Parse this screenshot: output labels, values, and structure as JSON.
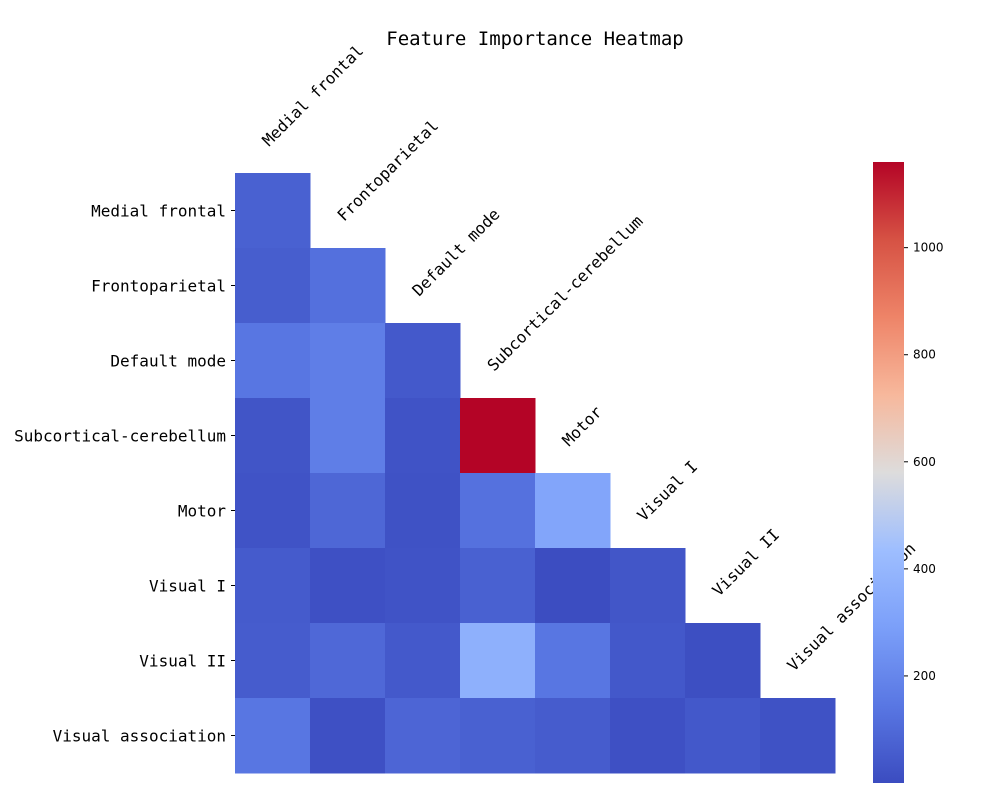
{
  "chart_data": {
    "type": "heatmap",
    "title": "Feature Importance Heatmap",
    "row_labels": [
      "Medial frontal",
      "Frontoparietal",
      "Default mode",
      "Subcortical-cerebellum",
      "Motor",
      "Visual I",
      "Visual II",
      "Visual association"
    ],
    "col_labels": [
      "Medial frontal",
      "Frontoparietal",
      "Default mode",
      "Subcortical-cerebellum",
      "Motor",
      "Visual I",
      "Visual II",
      "Visual association"
    ],
    "mask": "upper triangle (lower triangle incl. diagonal shown)",
    "values": [
      [
        70
      ],
      [
        60,
        120
      ],
      [
        140,
        170,
        45
      ],
      [
        30,
        170,
        25,
        1160
      ],
      [
        25,
        90,
        20,
        125,
        320
      ],
      [
        50,
        15,
        25,
        70,
        5,
        35
      ],
      [
        55,
        95,
        45,
        370,
        140,
        40,
        10
      ],
      [
        140,
        15,
        85,
        70,
        55,
        15,
        40,
        20
      ]
    ],
    "colormap": "coolwarm",
    "colorbar": {
      "min": 0,
      "max": 1160,
      "ticks": [
        200,
        400,
        600,
        800,
        1000
      ]
    }
  }
}
